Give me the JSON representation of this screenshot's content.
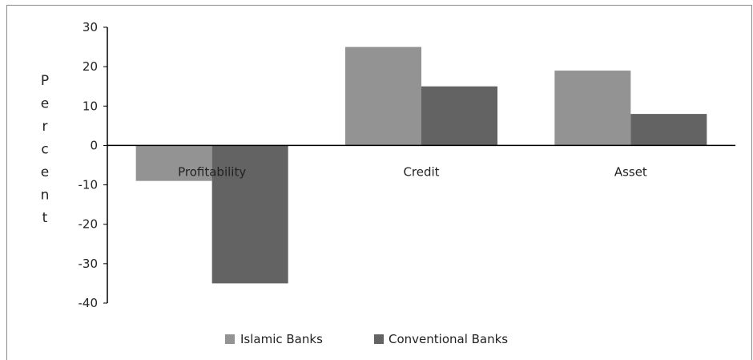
{
  "chart_data": {
    "type": "bar",
    "categories": [
      "Profitability",
      "Credit",
      "Asset"
    ],
    "series": [
      {
        "name": "Islamic Banks",
        "values": [
          -9,
          25,
          19
        ],
        "color": "#939393"
      },
      {
        "name": "Conventional Banks",
        "values": [
          -35,
          15,
          8
        ],
        "color": "#636363"
      }
    ],
    "ylabel": "Percent",
    "xlabel": "",
    "ylim": [
      -40,
      30
    ],
    "yticks": [
      "30",
      "20",
      "10",
      "0",
      "-10",
      "-20",
      "-30",
      "-40"
    ],
    "grid": false,
    "legend_position": "bottom"
  }
}
